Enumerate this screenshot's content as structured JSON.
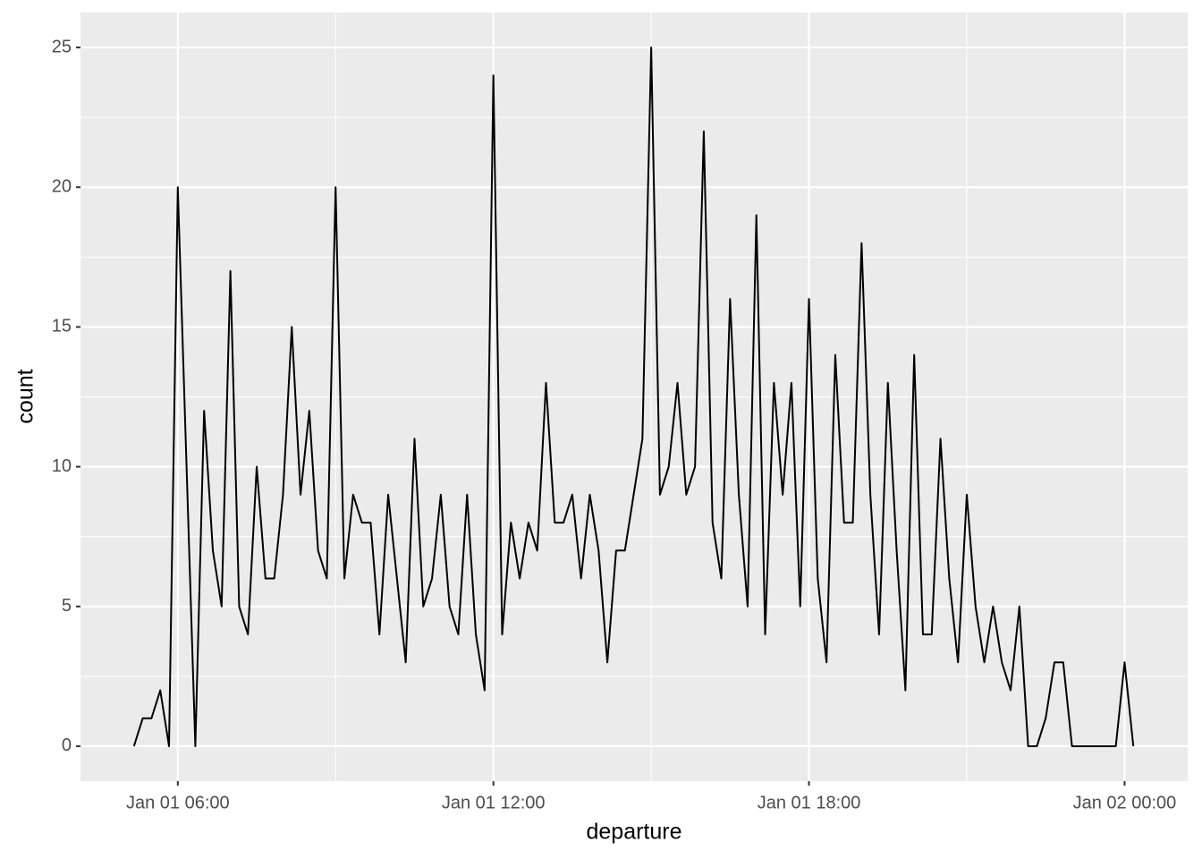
{
  "chart_data": {
    "type": "line",
    "x_label": "departure",
    "y_label": "count",
    "x": [
      310,
      320,
      330,
      340,
      350,
      360,
      370,
      380,
      390,
      400,
      410,
      420,
      430,
      440,
      450,
      460,
      470,
      480,
      490,
      500,
      510,
      520,
      530,
      540,
      550,
      560,
      570,
      580,
      590,
      600,
      610,
      620,
      630,
      640,
      650,
      660,
      670,
      680,
      690,
      700,
      710,
      720,
      730,
      740,
      750,
      760,
      770,
      780,
      790,
      800,
      810,
      820,
      830,
      840,
      850,
      860,
      870,
      880,
      890,
      900,
      910,
      920,
      930,
      940,
      950,
      960,
      970,
      980,
      990,
      1000,
      1010,
      1020,
      1030,
      1040,
      1050,
      1060,
      1070,
      1080,
      1090,
      1100,
      1110,
      1120,
      1130,
      1140,
      1150,
      1160,
      1170,
      1180,
      1190,
      1200,
      1210,
      1220,
      1230,
      1240,
      1250,
      1260,
      1270,
      1280,
      1290,
      1300,
      1310,
      1320,
      1330,
      1340,
      1350,
      1360,
      1370,
      1380,
      1390,
      1400,
      1410,
      1420,
      1430,
      1440,
      1450
    ],
    "series": [
      {
        "name": "count",
        "color": "#000000",
        "values": [
          0,
          1,
          1,
          2,
          0,
          20,
          10,
          0,
          12,
          7,
          5,
          17,
          5,
          4,
          10,
          6,
          6,
          9,
          15,
          9,
          12,
          7,
          6,
          20,
          6,
          9,
          8,
          8,
          4,
          9,
          6,
          3,
          11,
          5,
          6,
          9,
          5,
          4,
          9,
          4,
          2,
          24,
          4,
          8,
          6,
          8,
          7,
          13,
          8,
          8,
          9,
          6,
          9,
          7,
          3,
          7,
          7,
          9,
          11,
          25,
          9,
          10,
          13,
          9,
          10,
          22,
          8,
          6,
          16,
          9,
          5,
          19,
          4,
          13,
          9,
          13,
          5,
          16,
          6,
          3,
          14,
          8,
          8,
          18,
          9,
          4,
          13,
          7,
          2,
          14,
          4,
          4,
          11,
          6,
          3,
          9,
          5,
          3,
          5,
          3,
          2,
          5,
          0,
          0,
          1,
          3,
          3,
          0,
          0,
          0,
          0,
          0,
          0,
          3,
          0
        ]
      }
    ],
    "xlim": [
      249,
      1512
    ],
    "xticks": [
      {
        "value": 360,
        "label": "Jan 01 06:00"
      },
      {
        "value": 720,
        "label": "Jan 01 12:00"
      },
      {
        "value": 1080,
        "label": "Jan 01 18:00"
      },
      {
        "value": 1440,
        "label": "Jan 02 00:00"
      }
    ],
    "ylim": [
      -1.25,
      26.25
    ],
    "yticks": [
      0,
      5,
      10,
      15,
      20,
      25
    ],
    "grid": true
  }
}
